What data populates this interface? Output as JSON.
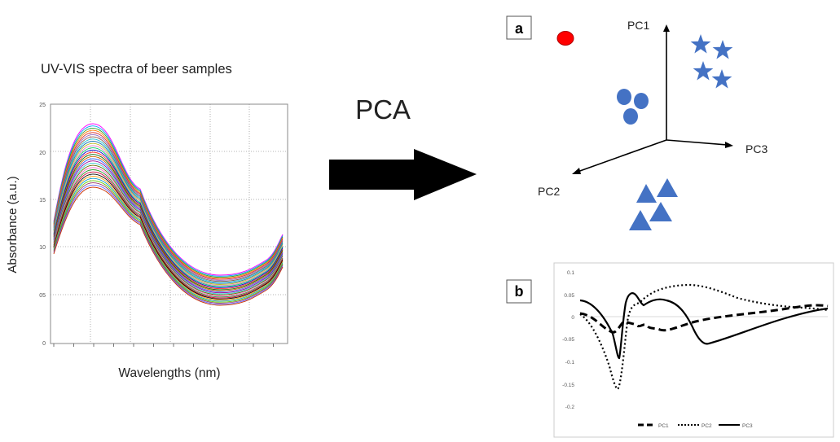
{
  "spectra": {
    "title": "UV-VIS  spectra of beer samples",
    "ylabel": "Absorbance (a.u.)",
    "xlabel": "Wavelengths (nm)",
    "yticks": [
      "25",
      "20",
      "15",
      "10",
      "05",
      "0"
    ]
  },
  "arrow": {
    "label": "PCA"
  },
  "panel_a": {
    "label": "a",
    "axes": {
      "pc1": "PC1",
      "pc2": "PC2",
      "pc3": "PC3"
    },
    "colors": {
      "outlier": "#ff0000",
      "groups": "#4472c4"
    }
  },
  "panel_b": {
    "label": "b",
    "yticks": [
      "0.1",
      "0.05",
      "0",
      "-0.05",
      "-0.1",
      "-0.15",
      "-0.2"
    ],
    "legend": [
      "PC1",
      "PC2",
      "PC3"
    ]
  }
}
